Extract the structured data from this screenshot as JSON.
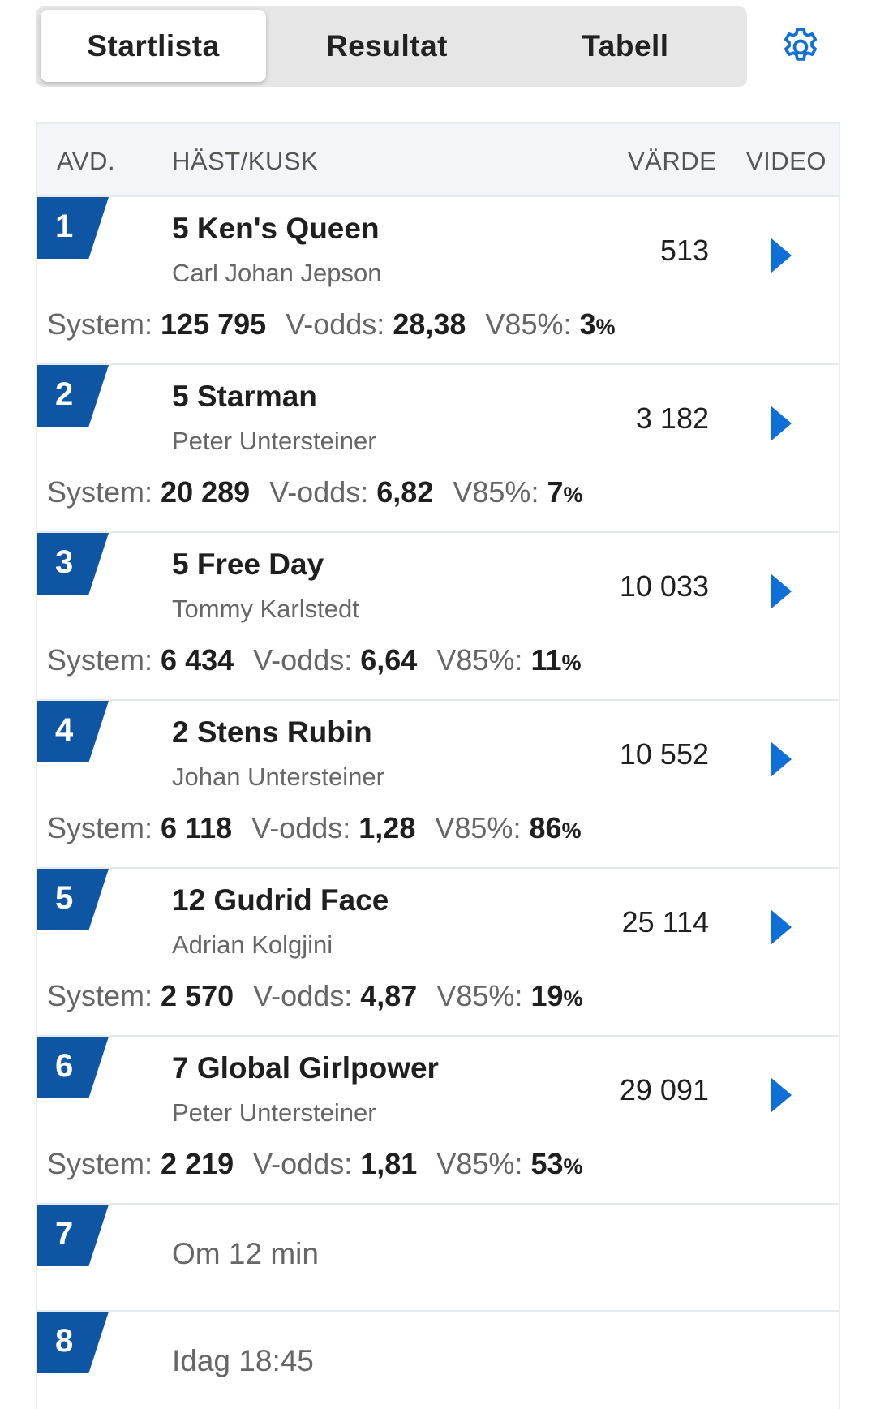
{
  "tabs": [
    {
      "label": "Startlista",
      "active": true
    },
    {
      "label": "Resultat",
      "active": false
    },
    {
      "label": "Tabell",
      "active": false
    }
  ],
  "settings_icon": "gear-icon",
  "header": {
    "avd": "AVD.",
    "hast": "HÄST/KUSK",
    "varde": "VÄRDE",
    "video": "VIDEO"
  },
  "labels": {
    "system": "System:",
    "vodds": "V-odds:",
    "v85": "V85%:",
    "pct": "%"
  },
  "races": [
    {
      "avd": "1",
      "horse": "5 Ken's Queen",
      "driver": "Carl Johan Jepson",
      "value": "513",
      "system": "125 795",
      "vodds": "28,38",
      "v85": "3"
    },
    {
      "avd": "2",
      "horse": "5 Starman",
      "driver": "Peter Untersteiner",
      "value": "3 182",
      "system": "20 289",
      "vodds": "6,82",
      "v85": "7"
    },
    {
      "avd": "3",
      "horse": "5 Free Day",
      "driver": "Tommy Karlstedt",
      "value": "10 033",
      "system": "6 434",
      "vodds": "6,64",
      "v85": "11"
    },
    {
      "avd": "4",
      "horse": "2 Stens Rubin",
      "driver": "Johan Untersteiner",
      "value": "10 552",
      "system": "6 118",
      "vodds": "1,28",
      "v85": "86"
    },
    {
      "avd": "5",
      "horse": "12 Gudrid Face",
      "driver": "Adrian Kolgjini",
      "value": "25 114",
      "system": "2 570",
      "vodds": "4,87",
      "v85": "19"
    },
    {
      "avd": "6",
      "horse": "7 Global Girlpower",
      "driver": "Peter Untersteiner",
      "value": "29 091",
      "system": "2 219",
      "vodds": "1,81",
      "v85": "53"
    }
  ],
  "upcoming": [
    {
      "avd": "7",
      "time": "Om 12 min"
    },
    {
      "avd": "8",
      "time": "Idag 18:45"
    }
  ],
  "colors": {
    "flag": "#0e56a4",
    "play": "#0e6fd6",
    "settings": "#0e6fd6"
  }
}
